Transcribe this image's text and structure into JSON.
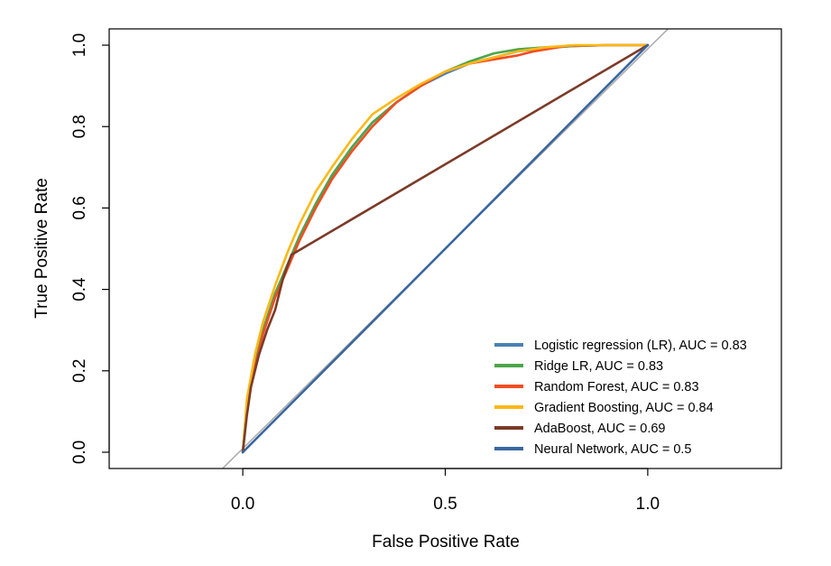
{
  "chart_data": {
    "type": "line",
    "title": "",
    "xlabel": "False Positive Rate",
    "ylabel": "True Positive Rate",
    "xlim": [
      -0.33,
      1.33
    ],
    "ylim": [
      -0.04,
      1.04
    ],
    "xticks": [
      0.0,
      0.5,
      1.0
    ],
    "xtick_labels": [
      "0.0",
      "0.5",
      "1.0"
    ],
    "yticks": [
      0.0,
      0.2,
      0.4,
      0.6,
      0.8,
      1.0
    ],
    "ytick_labels": [
      "0.0",
      "0.2",
      "0.4",
      "0.6",
      "0.8",
      "1.0"
    ],
    "grid": false,
    "legend_position": "bottom-right",
    "diagonal_reference": {
      "x": [
        -0.05,
        1.05
      ],
      "y": [
        -0.04,
        1.04
      ],
      "color": "#aaaaaa"
    },
    "series": [
      {
        "name": "Logistic regression (LR), AUC =  0.83",
        "color": "#4a80b5",
        "x": [
          0,
          0.01,
          0.03,
          0.05,
          0.08,
          0.11,
          0.14,
          0.18,
          0.22,
          0.27,
          0.32,
          0.38,
          0.44,
          0.5,
          0.56,
          0.62,
          0.68,
          0.75,
          0.82,
          0.9,
          1.0
        ],
        "y": [
          0,
          0.12,
          0.22,
          0.3,
          0.39,
          0.46,
          0.53,
          0.61,
          0.68,
          0.75,
          0.81,
          0.86,
          0.9,
          0.93,
          0.955,
          0.97,
          0.985,
          0.993,
          0.998,
          1.0,
          1.0
        ]
      },
      {
        "name": "Ridge LR, AUC =  0.83",
        "color": "#4da54a",
        "x": [
          0,
          0.01,
          0.03,
          0.05,
          0.08,
          0.11,
          0.14,
          0.18,
          0.22,
          0.27,
          0.32,
          0.38,
          0.44,
          0.5,
          0.56,
          0.62,
          0.68,
          0.75,
          0.82,
          0.9,
          1.0
        ],
        "y": [
          0,
          0.12,
          0.22,
          0.3,
          0.39,
          0.46,
          0.53,
          0.61,
          0.68,
          0.75,
          0.81,
          0.86,
          0.9,
          0.935,
          0.96,
          0.98,
          0.99,
          0.995,
          0.998,
          1.0,
          1.0
        ]
      },
      {
        "name": "Random Forest, AUC =  0.83",
        "color": "#f04e23",
        "x": [
          0,
          0.01,
          0.03,
          0.05,
          0.08,
          0.11,
          0.14,
          0.18,
          0.22,
          0.27,
          0.32,
          0.38,
          0.44,
          0.5,
          0.56,
          0.62,
          0.68,
          0.72,
          0.8,
          0.9,
          1.0
        ],
        "y": [
          0,
          0.11,
          0.21,
          0.29,
          0.38,
          0.45,
          0.52,
          0.6,
          0.67,
          0.74,
          0.8,
          0.86,
          0.9,
          0.935,
          0.955,
          0.965,
          0.975,
          0.985,
          0.998,
          1.0,
          1.0
        ]
      },
      {
        "name": "Gradient Boosting, AUC =  0.84",
        "color": "#fbb817",
        "x": [
          0,
          0.01,
          0.03,
          0.05,
          0.08,
          0.11,
          0.14,
          0.18,
          0.22,
          0.27,
          0.32,
          0.38,
          0.44,
          0.5,
          0.56,
          0.62,
          0.68,
          0.75,
          0.82,
          0.9,
          1.0
        ],
        "y": [
          0,
          0.13,
          0.24,
          0.32,
          0.41,
          0.49,
          0.56,
          0.64,
          0.7,
          0.77,
          0.83,
          0.87,
          0.905,
          0.935,
          0.955,
          0.97,
          0.985,
          0.995,
          1.0,
          1.0,
          1.0
        ]
      },
      {
        "name": "AdaBoost, AUC =  0.69",
        "color": "#7b3b28",
        "x": [
          0,
          0.01,
          0.02,
          0.04,
          0.06,
          0.08,
          0.1,
          0.12,
          1.0
        ],
        "y": [
          0,
          0.09,
          0.16,
          0.24,
          0.3,
          0.35,
          0.43,
          0.485,
          1.0
        ]
      },
      {
        "name": "Neural Network, AUC =  0.5",
        "color": "#3a66a0",
        "x": [
          0,
          1.0
        ],
        "y": [
          0,
          1.0
        ]
      }
    ]
  }
}
